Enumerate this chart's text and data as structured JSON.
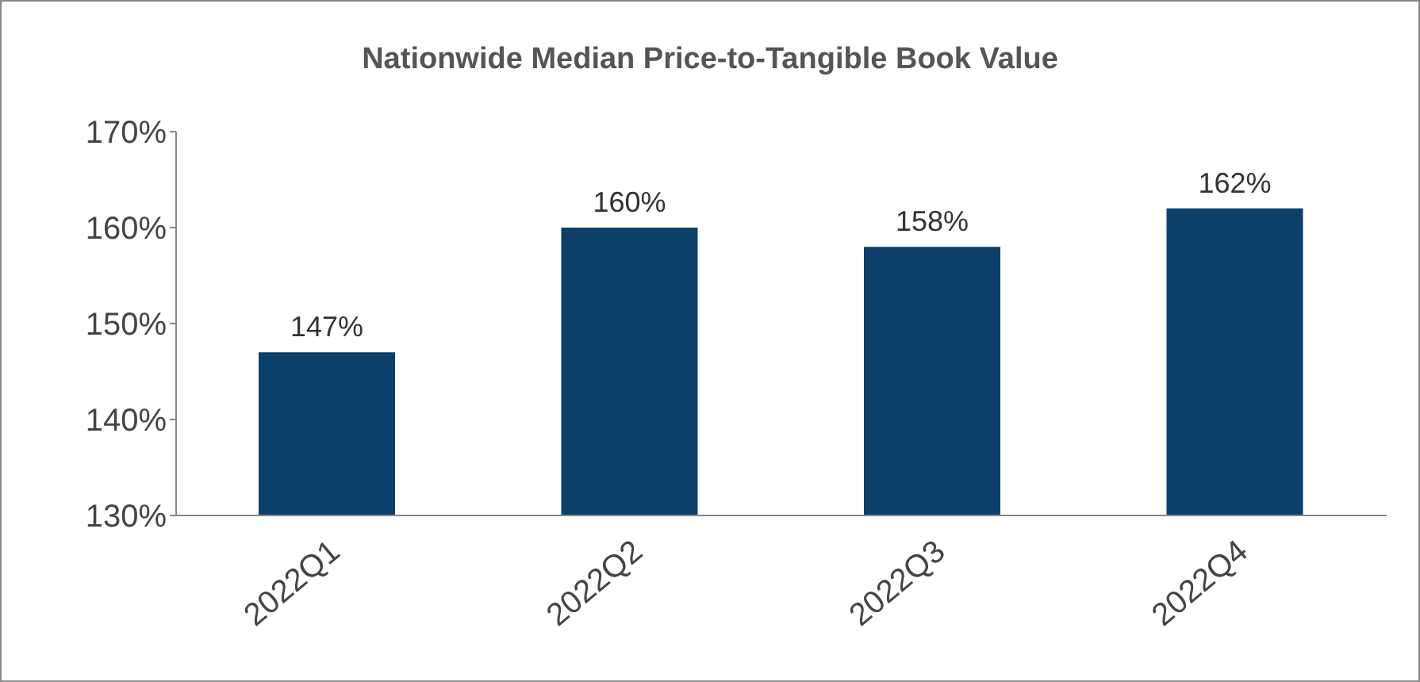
{
  "chart_data": {
    "type": "bar",
    "title": "Nationwide Median Price-to-Tangible Book Value",
    "categories": [
      "2022Q1",
      "2022Q2",
      "2022Q3",
      "2022Q4"
    ],
    "values": [
      147,
      160,
      158,
      162
    ],
    "value_labels": [
      "147%",
      "160%",
      "158%",
      "162%"
    ],
    "color": "#0d3f6b",
    "ylim": [
      130,
      170
    ],
    "yticks": [
      {
        "value": 130,
        "label": "130%"
      },
      {
        "value": 140,
        "label": "140%"
      },
      {
        "value": 150,
        "label": "150%"
      },
      {
        "value": 160,
        "label": "160%"
      },
      {
        "value": 170,
        "label": "170%"
      }
    ],
    "grid": false,
    "legend": false
  }
}
